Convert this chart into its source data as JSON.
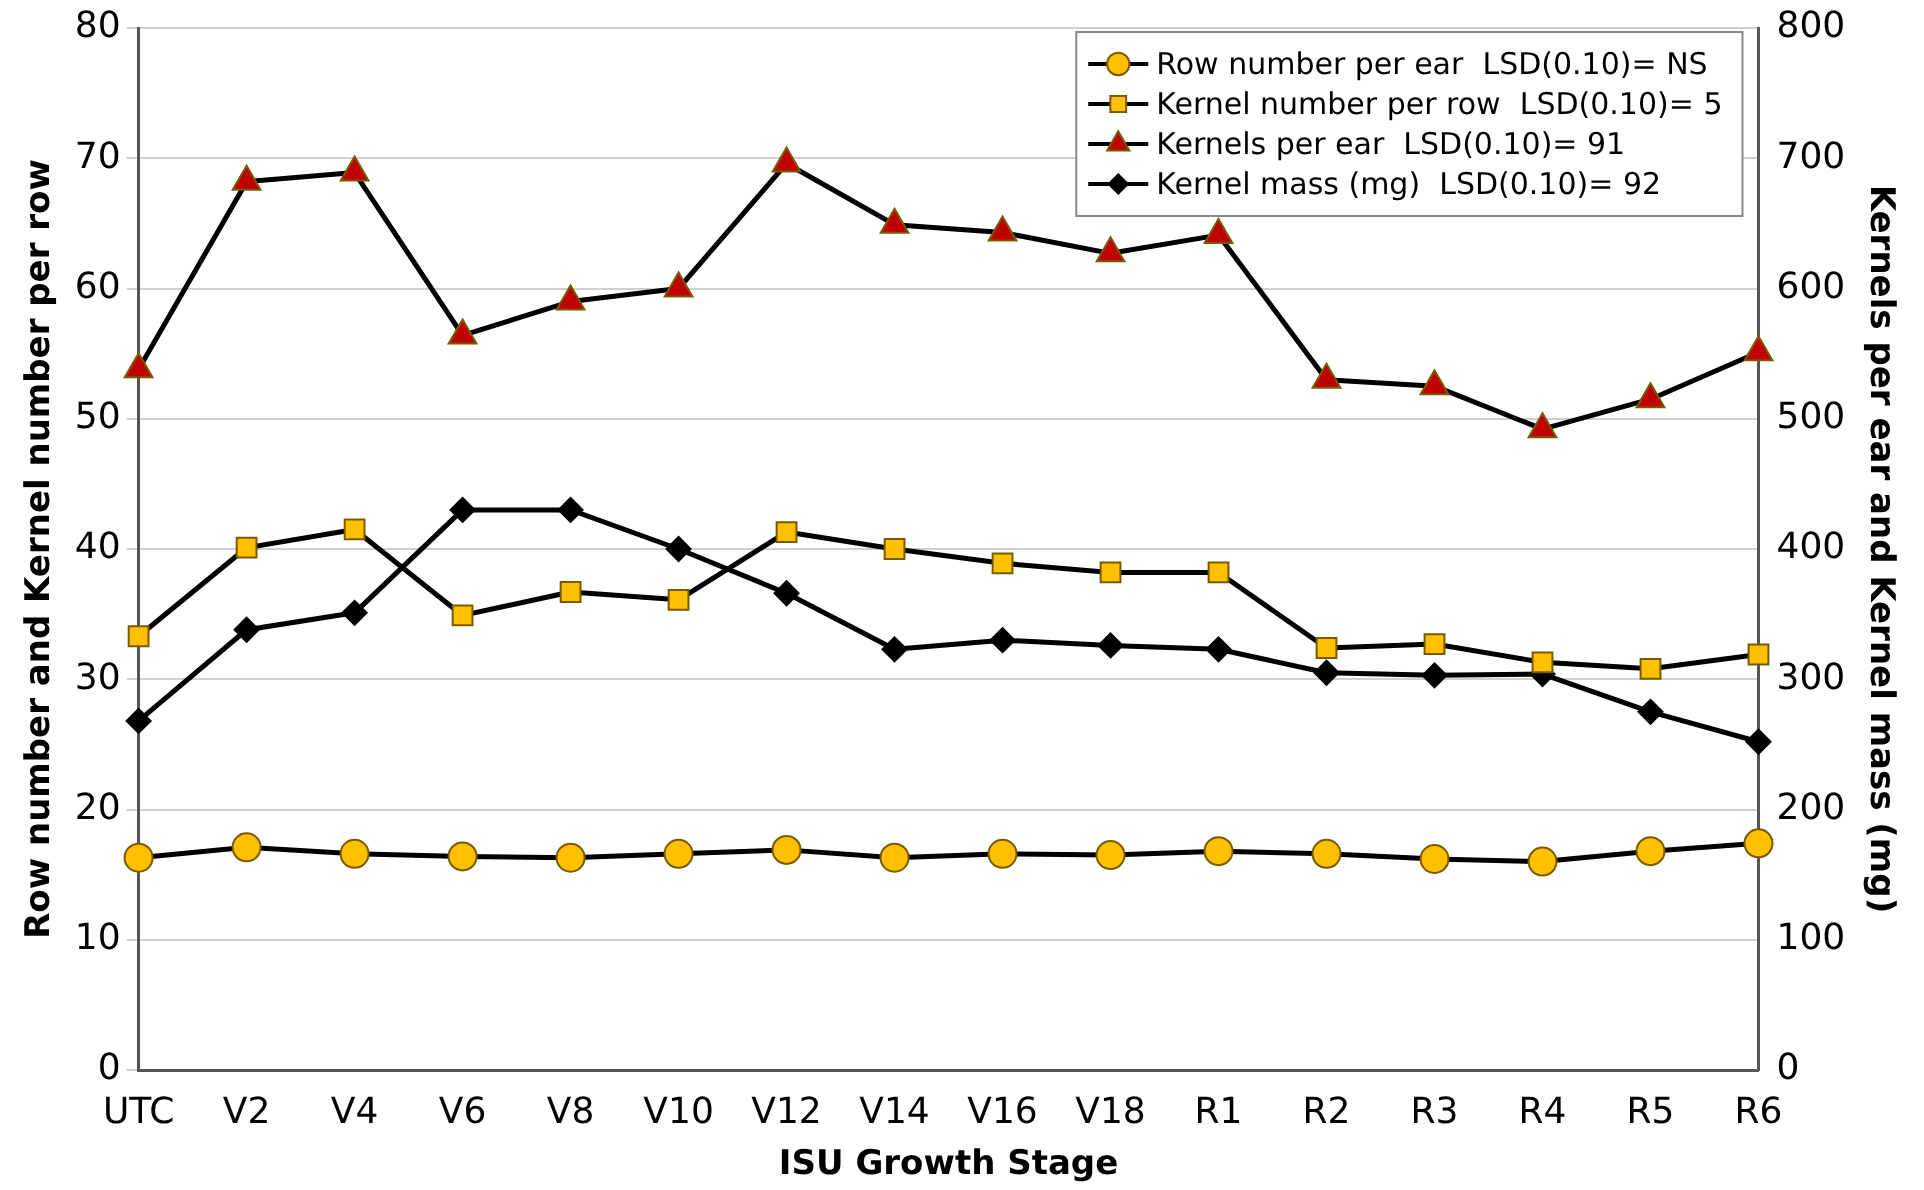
{
  "chart_data": {
    "type": "line",
    "xlabel": "ISU Growth Stage",
    "ylabel": "Row number and Kernel number per row",
    "y2label": "Kernels per ear and Kernel mass (mg)",
    "categories": [
      "UTC",
      "V2",
      "V4",
      "V6",
      "V8",
      "V10",
      "V12",
      "V14",
      "V16",
      "V18",
      "R1",
      "R2",
      "R3",
      "R4",
      "R5",
      "R6"
    ],
    "series": [
      {
        "name": "Row number per ear  LSD(0.10)= NS",
        "color": "#ffc000",
        "marker": "circle",
        "values": [
          16.3,
          17.1,
          16.6,
          16.4,
          16.3,
          16.6,
          16.9,
          16.3,
          16.6,
          16.5,
          16.8,
          16.6,
          16.2,
          16.0,
          16.8,
          17.4
        ]
      },
      {
        "name": "Kernel number per row  LSD(0.10)= 5",
        "color": "#ffc000",
        "marker": "square",
        "values": [
          33.3,
          40.1,
          41.5,
          34.9,
          36.7,
          36.1,
          41.3,
          40.0,
          38.9,
          38.2,
          38.2,
          32.4,
          32.7,
          31.3,
          30.8,
          31.9
        ]
      },
      {
        "name": "Kernels per ear  LSD(0.10)= 91",
        "color": "#c00000",
        "marker": "triangle",
        "axis": "y2",
        "values": [
          538,
          682,
          689,
          564,
          590,
          600,
          696,
          649,
          643,
          627,
          641,
          530,
          525,
          492,
          515,
          551
        ]
      },
      {
        "name": "Kernel mass (mg)  LSD(0.10)= 92",
        "color": "#000000",
        "marker": "diamond",
        "axis": "y2",
        "values": [
          268,
          338,
          351,
          430,
          430,
          400,
          366,
          323,
          330,
          326,
          323,
          305,
          303,
          304,
          275,
          252
        ]
      }
    ],
    "ylim": [
      0,
      80
    ],
    "yticks": [
      0,
      10,
      20,
      30,
      40,
      50,
      60,
      70,
      80
    ],
    "y2lim": [
      0,
      800
    ],
    "y2ticks": [
      0,
      100,
      200,
      300,
      400,
      500,
      600,
      700,
      800
    ],
    "grid": "y",
    "legend": "top right",
    "line_style": "solid"
  }
}
